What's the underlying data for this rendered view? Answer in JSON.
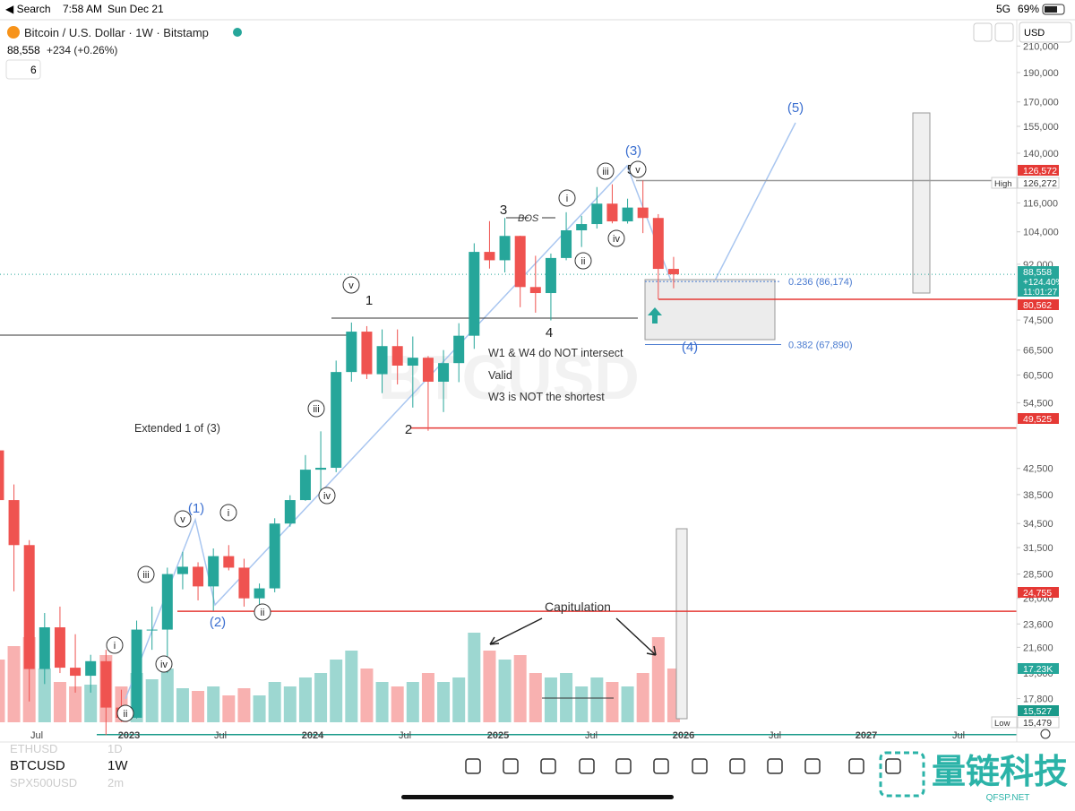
{
  "status_bar": {
    "back": "◀ Search",
    "time": "7:58 AM",
    "date": "Sun Dec 21",
    "network": "5G",
    "battery": "69%"
  },
  "header": {
    "symbol_title": "Bitcoin / U.S. Dollar · 1W · Bitstamp",
    "price": "88,558",
    "change": "+234 (+0.26%)",
    "indicators": "6",
    "currency": "USD"
  },
  "chart_data": {
    "type": "candlestick",
    "log_scale": true,
    "ylim": [
      15100,
      232000
    ],
    "yticks": [
      {
        "value": 210000,
        "label": "210,000"
      },
      {
        "value": 190000,
        "label": "190,000"
      },
      {
        "value": 170000,
        "label": "170,000"
      },
      {
        "value": 155000,
        "label": "155,000"
      },
      {
        "value": 140000,
        "label": "140,000"
      },
      {
        "value": 116000,
        "label": "116,000"
      },
      {
        "value": 104000,
        "label": "104,000"
      },
      {
        "value": 92000,
        "label": "92,000"
      },
      {
        "value": 74500,
        "label": "74,500"
      },
      {
        "value": 66500,
        "label": "66,500"
      },
      {
        "value": 60500,
        "label": "60,500"
      },
      {
        "value": 54500,
        "label": "54,500"
      },
      {
        "value": 42500,
        "label": "42,500"
      },
      {
        "value": 38500,
        "label": "38,500"
      },
      {
        "value": 34500,
        "label": "34,500"
      },
      {
        "value": 31500,
        "label": "31,500"
      },
      {
        "value": 28500,
        "label": "28,500"
      },
      {
        "value": 26000,
        "label": "26,000"
      },
      {
        "value": 23600,
        "label": "23,600"
      },
      {
        "value": 21600,
        "label": "21,600"
      },
      {
        "value": 19600,
        "label": "19,600"
      },
      {
        "value": 17800,
        "label": "17,800"
      },
      {
        "value": 16300,
        "label": "16,300"
      }
    ],
    "x_labels": [
      "Jul",
      "2023",
      "Jul",
      "2024",
      "Jul",
      "2025",
      "Jul",
      "2026",
      "Jul",
      "2027",
      "Jul"
    ],
    "up_color": "#26a69a",
    "down_color": "#ef5350",
    "ohlc": [
      [
        45500,
        47400,
        37600,
        37700
      ],
      [
        37700,
        40000,
        26700,
        31800
      ],
      [
        31800,
        32400,
        17600,
        19900
      ],
      [
        19900,
        24600,
        18800,
        23300
      ],
      [
        23300,
        25200,
        19600,
        20000
      ],
      [
        20000,
        22700,
        18200,
        19400
      ],
      [
        19400,
        21000,
        18200,
        20500
      ],
      [
        20500,
        21400,
        15500,
        17200
      ],
      [
        17200,
        18400,
        16300,
        16550
      ],
      [
        16550,
        23900,
        16500,
        23100
      ],
      [
        23100,
        25200,
        21400,
        23100
      ],
      [
        23100,
        29200,
        19600,
        28500
      ],
      [
        28500,
        31000,
        26900,
        29300
      ],
      [
        29300,
        29800,
        25800,
        27200
      ],
      [
        27200,
        31400,
        24800,
        30500
      ],
      [
        30500,
        31800,
        28900,
        29200
      ],
      [
        29200,
        30200,
        25200,
        26000
      ],
      [
        26000,
        27500,
        24900,
        27000
      ],
      [
        27000,
        35200,
        26600,
        34500
      ],
      [
        34500,
        38400,
        34100,
        37700
      ],
      [
        37700,
        44700,
        37600,
        42300
      ],
      [
        42300,
        48900,
        38500,
        42600
      ],
      [
        42600,
        63900,
        41900,
        61200
      ],
      [
        61200,
        73800,
        59000,
        71300
      ],
      [
        71300,
        72800,
        59600,
        60700
      ],
      [
        60700,
        71900,
        56500,
        67500
      ],
      [
        67500,
        71900,
        58400,
        62700
      ],
      [
        62700,
        70000,
        53500,
        64600
      ],
      [
        64600,
        65000,
        49000,
        59000
      ],
      [
        59000,
        66500,
        52600,
        63300
      ],
      [
        63300,
        73600,
        58900,
        70200
      ],
      [
        70200,
        99600,
        66800,
        96400
      ],
      [
        96400,
        108300,
        90500,
        93400
      ],
      [
        93400,
        109600,
        89200,
        102400
      ],
      [
        102400,
        102500,
        78200,
        84400
      ],
      [
        84400,
        95000,
        76600,
        82500
      ],
      [
        82500,
        95800,
        74400,
        94200
      ],
      [
        94200,
        112000,
        93400,
        104600
      ],
      [
        104600,
        110500,
        98200,
        107100
      ],
      [
        107100,
        123200,
        105300,
        115700
      ],
      [
        115700,
        124500,
        107400,
        108200
      ],
      [
        108200,
        117900,
        107300,
        114000
      ],
      [
        114000,
        126272,
        103500,
        109600
      ],
      [
        109600,
        111200,
        80600,
        90400
      ],
      [
        90400,
        94600,
        84000,
        88558
      ]
    ],
    "volume": [
      70,
      85,
      95,
      60,
      45,
      40,
      42,
      75,
      40,
      55,
      48,
      60,
      38,
      35,
      40,
      30,
      38,
      30,
      45,
      40,
      50,
      55,
      70,
      80,
      60,
      45,
      40,
      45,
      55,
      45,
      50,
      100,
      80,
      70,
      75,
      55,
      50,
      55,
      40,
      50,
      45,
      40,
      55,
      95,
      60
    ],
    "price_levels": [
      {
        "value": 126572,
        "label": "126,572",
        "color": "#e53935"
      },
      {
        "value": 126272,
        "label": "126,272",
        "tag": "High"
      },
      {
        "value": 88558,
        "label": "88,558",
        "extra": [
          "+124.40%",
          "11:01:27"
        ],
        "color": "#26a69a"
      },
      {
        "value": 80562,
        "label": "80,562",
        "color": "#e53935"
      },
      {
        "value": 49525,
        "label": "49,525",
        "color": "#e53935"
      },
      {
        "value": 24755,
        "label": "24,755",
        "color": "#e53935"
      },
      {
        "value": 17230,
        "label": "17.23K",
        "color": "#26a69a"
      },
      {
        "value": 15527,
        "label": "15,527",
        "color": "#1a9a8a"
      },
      {
        "value": 15479,
        "label": "15,479",
        "tag": "Low"
      }
    ],
    "fib": [
      {
        "value": 86174,
        "label": "0.236 (86,174)"
      },
      {
        "value": 67890,
        "label": "0.382 (67,890)"
      }
    ],
    "notes": [
      "W1 & W4 do NOT intersect",
      "Valid",
      "W3 is NOT the shortest",
      "Extended 1 of (3)",
      "Capitulation",
      "BOS"
    ],
    "waves": [
      "(5)",
      "(3)",
      "(4)",
      "(1)",
      "(2)",
      "1",
      "2",
      "3",
      "4",
      "5",
      "v",
      "v",
      "i",
      "ii",
      "iii",
      "iv",
      "i",
      "ii",
      "iii",
      "iv",
      "i",
      "ii",
      "iii",
      "iv",
      "v"
    ],
    "watermark": "BTCUSD"
  },
  "footer": {
    "symbols": [
      {
        "symbol": "ETHUSD",
        "interval": "1D"
      },
      {
        "symbol": "BTCUSD",
        "interval": "1W"
      },
      {
        "symbol": "SPX500USD",
        "interval": "2m"
      }
    ],
    "logo": "量链科技",
    "logo_sub": "QFSP.NET"
  }
}
